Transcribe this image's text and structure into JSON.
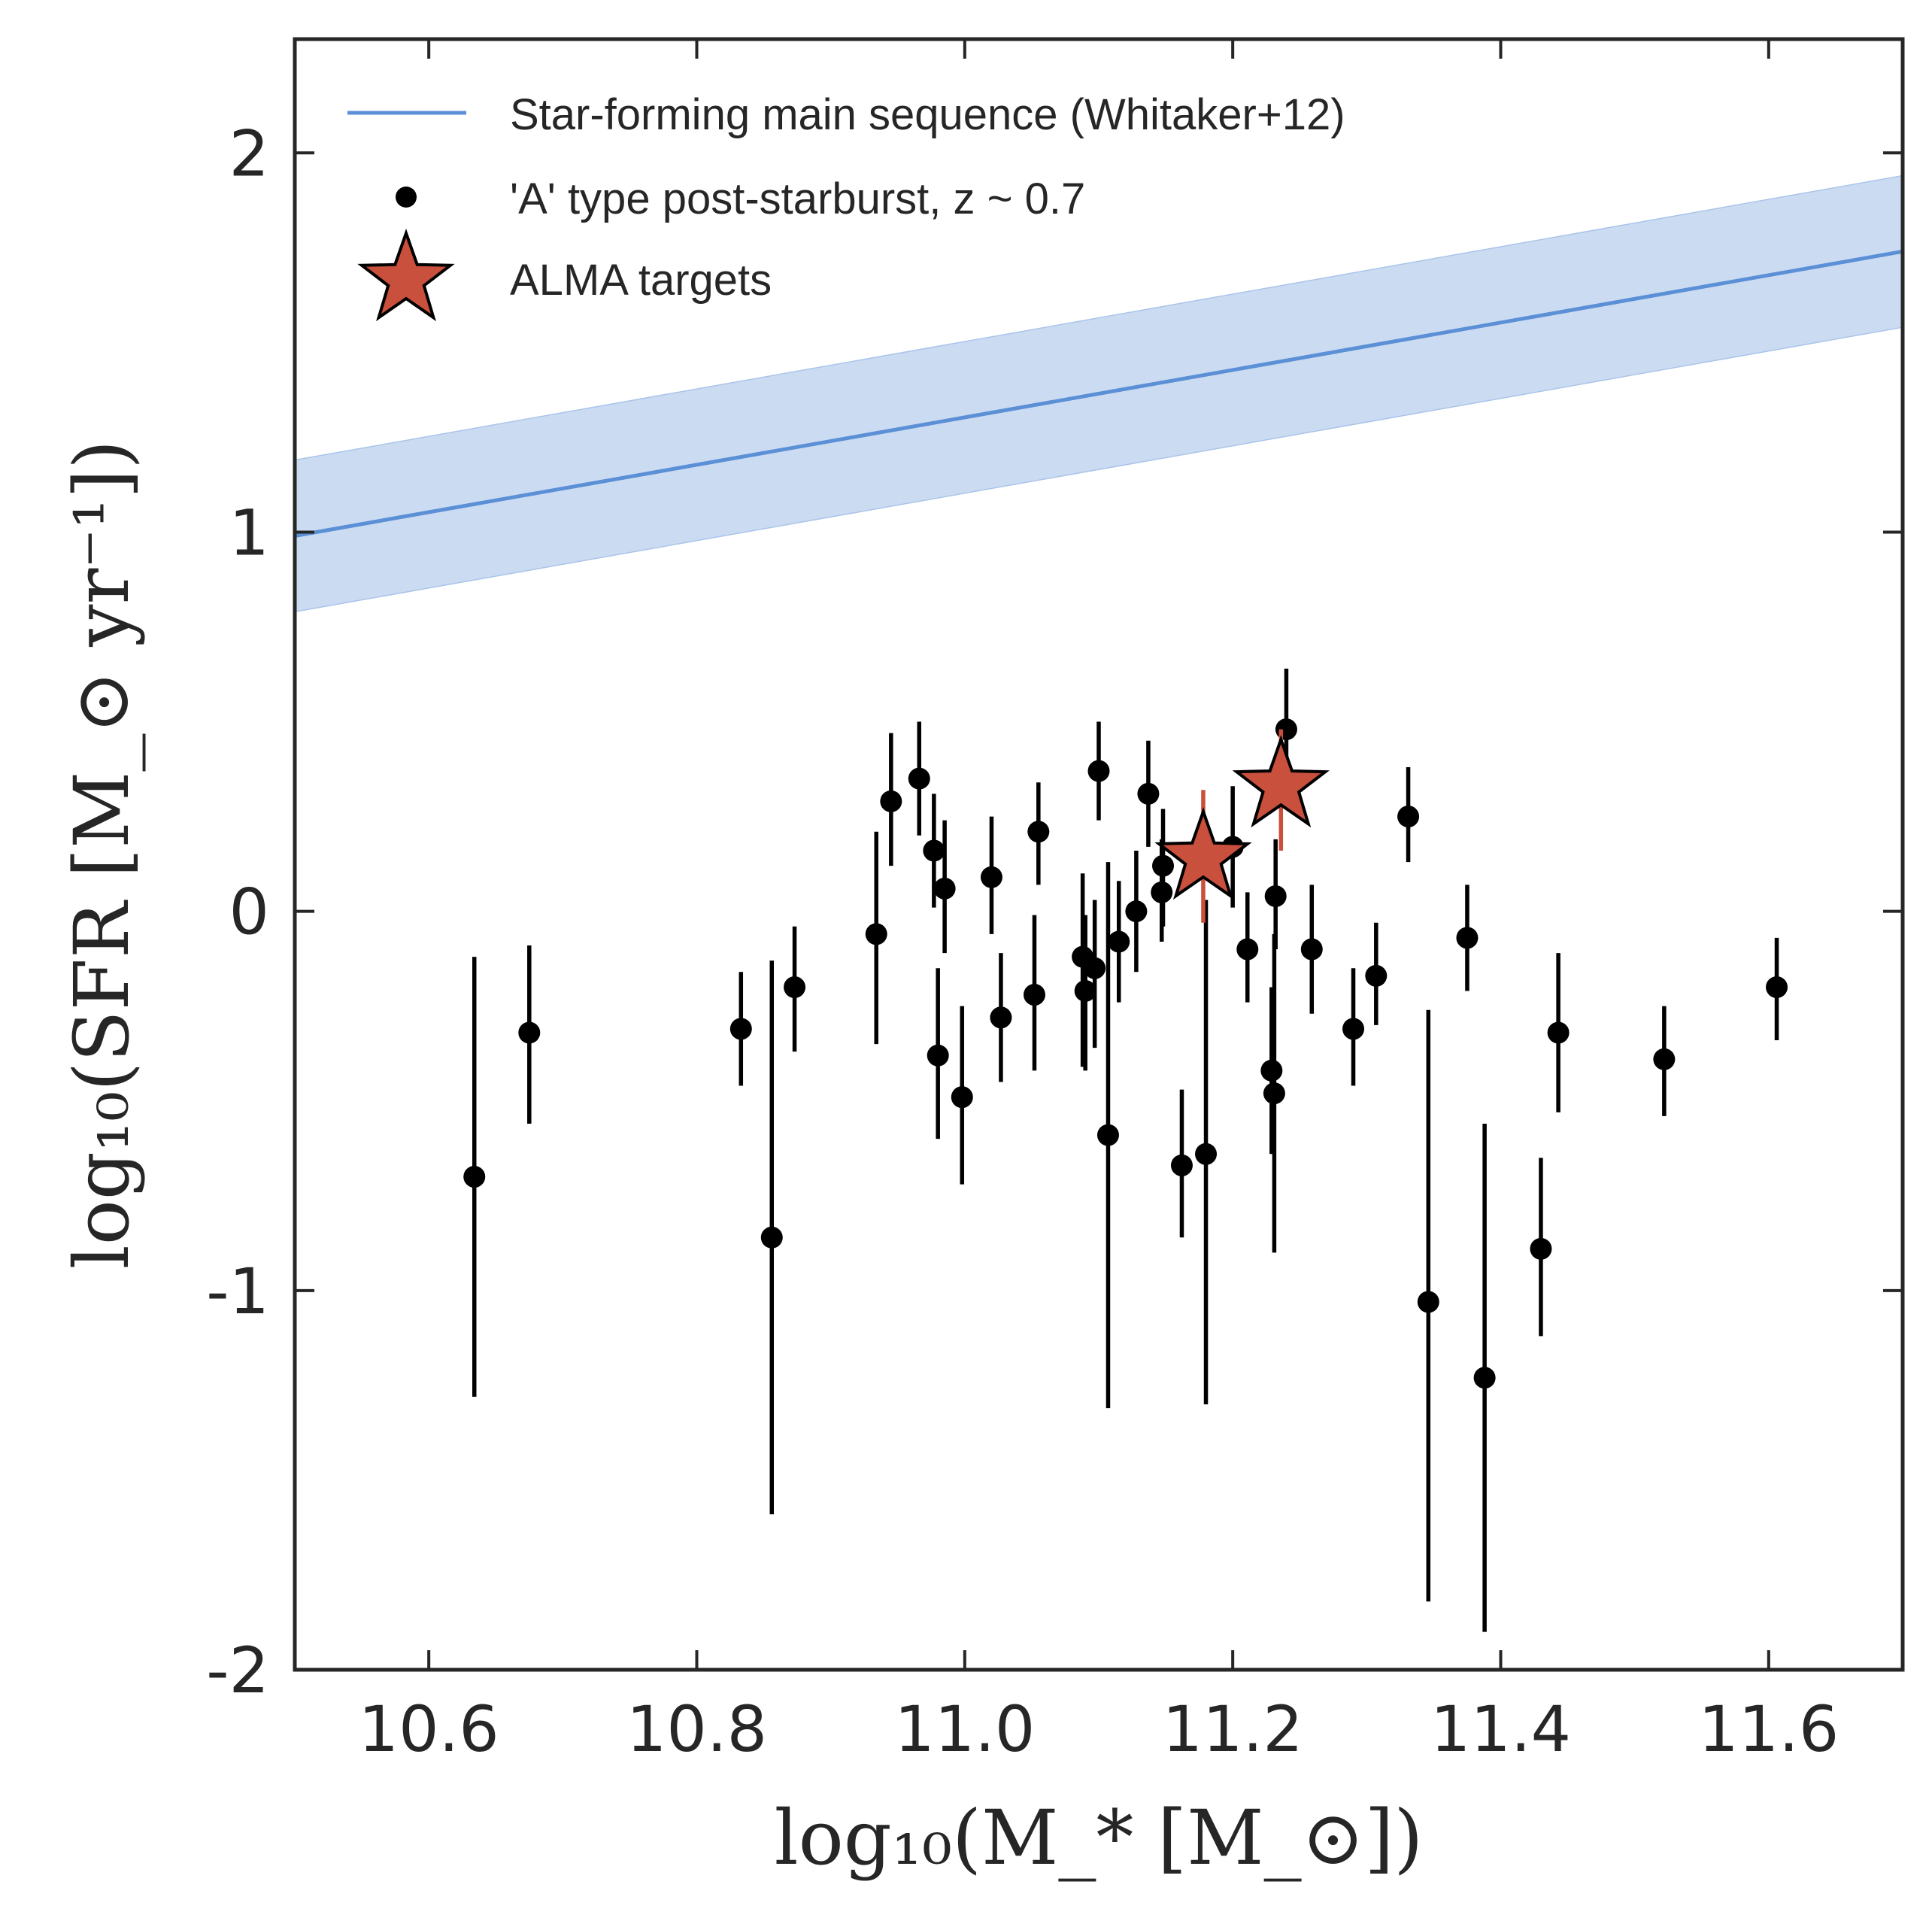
{
  "chart_data": {
    "type": "scatter",
    "xlabel": "log₁₀(M_* [M_⊙])",
    "ylabel": "log₁₀(SFR [M_⊙ yr⁻¹])",
    "xlim": [
      10.5,
      11.7
    ],
    "ylim": [
      -2,
      2.3
    ],
    "xticks": [
      10.6,
      10.8,
      11.0,
      11.2,
      11.4,
      11.6
    ],
    "xtick_labels": [
      "10.6",
      "10.8",
      "11.0",
      "11.2",
      "11.4",
      "11.6"
    ],
    "yticks": [
      -2,
      -1,
      0,
      1,
      2
    ],
    "ytick_labels": [
      "-2",
      "-1",
      "0",
      "1",
      "2"
    ],
    "grid": false,
    "legend_position": "top-left",
    "colors": {
      "main_sequence": "#5b8fd6",
      "band": "#cbdcf2",
      "points": "#000000",
      "alma": "#c8503c",
      "axes": "#262626"
    },
    "main_sequence": {
      "name": "Star-forming main sequence (Whitaker+12)",
      "x": [
        10.5,
        11.7
      ],
      "y": [
        0.99,
        1.74
      ],
      "band_upper": [
        1.19,
        1.94
      ],
      "band_lower": [
        0.79,
        1.54
      ]
    },
    "post_starburst": {
      "name": "'A' type post-starburst, z ~ 0.7",
      "points": [
        {
          "x": 10.634,
          "y": -0.7,
          "lo": -1.28,
          "hi": -0.12
        },
        {
          "x": 10.675,
          "y": -0.32,
          "lo": -0.56,
          "hi": -0.09
        },
        {
          "x": 10.833,
          "y": -0.31,
          "lo": -0.46,
          "hi": -0.16
        },
        {
          "x": 10.856,
          "y": -0.86,
          "lo": -1.59,
          "hi": -0.13
        },
        {
          "x": 10.873,
          "y": -0.2,
          "lo": -0.37,
          "hi": -0.04
        },
        {
          "x": 10.934,
          "y": -0.06,
          "lo": -0.35,
          "hi": 0.21
        },
        {
          "x": 10.945,
          "y": 0.29,
          "lo": 0.12,
          "hi": 0.47
        },
        {
          "x": 10.966,
          "y": 0.35,
          "lo": 0.2,
          "hi": 0.5
        },
        {
          "x": 10.977,
          "y": 0.16,
          "lo": 0.01,
          "hi": 0.31
        },
        {
          "x": 10.98,
          "y": -0.38,
          "lo": -0.6,
          "hi": -0.15
        },
        {
          "x": 10.985,
          "y": 0.06,
          "lo": -0.11,
          "hi": 0.24
        },
        {
          "x": 10.998,
          "y": -0.49,
          "lo": -0.72,
          "hi": -0.25
        },
        {
          "x": 11.02,
          "y": 0.09,
          "lo": -0.06,
          "hi": 0.25
        },
        {
          "x": 11.027,
          "y": -0.28,
          "lo": -0.45,
          "hi": -0.11
        },
        {
          "x": 11.052,
          "y": -0.22,
          "lo": -0.42,
          "hi": -0.01
        },
        {
          "x": 11.055,
          "y": 0.21,
          "lo": 0.07,
          "hi": 0.34
        },
        {
          "x": 11.088,
          "y": -0.12,
          "lo": -0.41,
          "hi": 0.1
        },
        {
          "x": 11.09,
          "y": -0.21,
          "lo": -0.42,
          "hi": -0.01
        },
        {
          "x": 11.097,
          "y": -0.15,
          "lo": -0.36,
          "hi": 0.03
        },
        {
          "x": 11.1,
          "y": 0.37,
          "lo": 0.24,
          "hi": 0.5
        },
        {
          "x": 11.107,
          "y": -0.59,
          "lo": -1.31,
          "hi": 0.13
        },
        {
          "x": 11.115,
          "y": -0.08,
          "lo": -0.24,
          "hi": 0.08
        },
        {
          "x": 11.128,
          "y": 0.0,
          "lo": -0.16,
          "hi": 0.16
        },
        {
          "x": 11.137,
          "y": 0.31,
          "lo": 0.17,
          "hi": 0.45
        },
        {
          "x": 11.147,
          "y": 0.05,
          "lo": -0.08,
          "hi": 0.19
        },
        {
          "x": 11.148,
          "y": 0.12,
          "lo": -0.04,
          "hi": 0.27
        },
        {
          "x": 11.162,
          "y": -0.67,
          "lo": -0.86,
          "hi": -0.47
        },
        {
          "x": 11.18,
          "y": -0.64,
          "lo": -1.3,
          "hi": 0.03
        },
        {
          "x": 11.2,
          "y": 0.17,
          "lo": 0.01,
          "hi": 0.33
        },
        {
          "x": 11.211,
          "y": -0.1,
          "lo": -0.24,
          "hi": 0.05
        },
        {
          "x": 11.229,
          "y": -0.42,
          "lo": -0.64,
          "hi": -0.2
        },
        {
          "x": 11.231,
          "y": -0.48,
          "lo": -0.9,
          "hi": -0.06
        },
        {
          "x": 11.232,
          "y": 0.04,
          "lo": -0.1,
          "hi": 0.19
        },
        {
          "x": 11.24,
          "y": 0.48,
          "lo": 0.3,
          "hi": 0.64
        },
        {
          "x": 11.259,
          "y": -0.1,
          "lo": -0.27,
          "hi": 0.07
        },
        {
          "x": 11.29,
          "y": -0.31,
          "lo": -0.46,
          "hi": -0.15
        },
        {
          "x": 11.307,
          "y": -0.17,
          "lo": -0.3,
          "hi": -0.03
        },
        {
          "x": 11.331,
          "y": 0.25,
          "lo": 0.13,
          "hi": 0.38
        },
        {
          "x": 11.346,
          "y": -1.03,
          "lo": -1.82,
          "hi": -0.26
        },
        {
          "x": 11.375,
          "y": -0.07,
          "lo": -0.21,
          "hi": 0.07
        },
        {
          "x": 11.388,
          "y": -1.23,
          "lo": -1.9,
          "hi": -0.56
        },
        {
          "x": 11.43,
          "y": -0.89,
          "lo": -1.12,
          "hi": -0.65
        },
        {
          "x": 11.443,
          "y": -0.32,
          "lo": -0.53,
          "hi": -0.11
        },
        {
          "x": 11.522,
          "y": -0.39,
          "lo": -0.54,
          "hi": -0.25
        },
        {
          "x": 11.606,
          "y": -0.2,
          "lo": -0.34,
          "hi": -0.07
        }
      ]
    },
    "alma_targets": {
      "name": "ALMA targets",
      "points": [
        {
          "x": 11.178,
          "y": 0.14,
          "lo": -0.03,
          "hi": 0.32
        },
        {
          "x": 11.236,
          "y": 0.33,
          "lo": 0.16,
          "hi": 0.48
        }
      ]
    }
  }
}
